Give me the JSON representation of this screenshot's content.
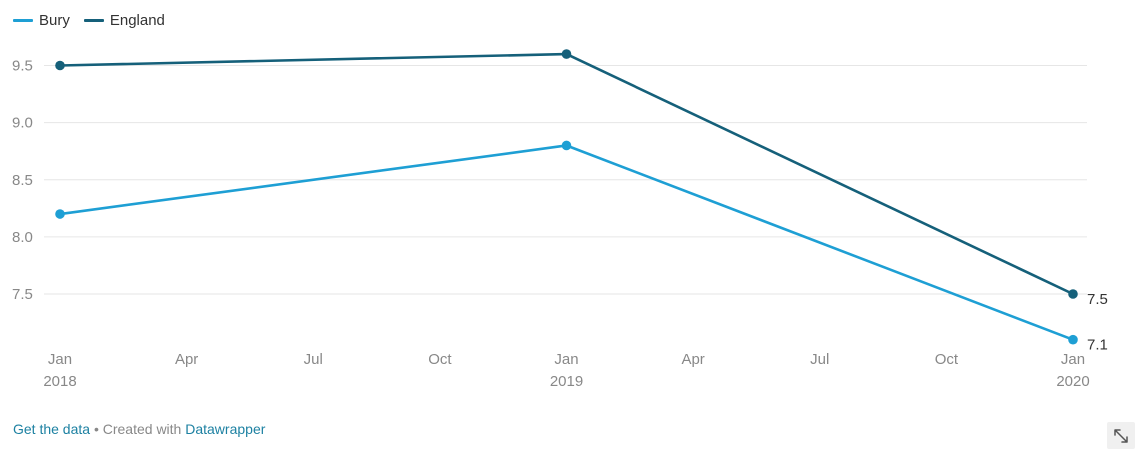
{
  "chart_data": {
    "type": "line",
    "x": [
      "2018-01",
      "2019-01",
      "2020-01"
    ],
    "series": [
      {
        "name": "Bury",
        "color": "#1e9fd4",
        "values": [
          8.2,
          8.8,
          7.1
        ]
      },
      {
        "name": "England",
        "color": "#15607a",
        "values": [
          9.5,
          9.6,
          7.5
        ]
      }
    ],
    "end_labels": [
      "7.1",
      "7.5"
    ],
    "y_ticks": [
      "7.5",
      "8.0",
      "8.5",
      "9.0",
      "9.5"
    ],
    "x_ticks": [
      {
        "month": "Jan",
        "year": "2018"
      },
      {
        "month": "Apr",
        "year": ""
      },
      {
        "month": "Jul",
        "year": ""
      },
      {
        "month": "Oct",
        "year": ""
      },
      {
        "month": "Jan",
        "year": "2019"
      },
      {
        "month": "Apr",
        "year": ""
      },
      {
        "month": "Jul",
        "year": ""
      },
      {
        "month": "Oct",
        "year": ""
      },
      {
        "month": "Jan",
        "year": "2020"
      }
    ],
    "ylim": [
      7.0,
      9.7
    ],
    "grid": true,
    "legend_position": "top-left"
  },
  "footer": {
    "get_data_label": "Get the data",
    "separator": " • Created with ",
    "datawrapper_label": "Datawrapper"
  },
  "icons": {
    "expand": "expand-icon"
  }
}
